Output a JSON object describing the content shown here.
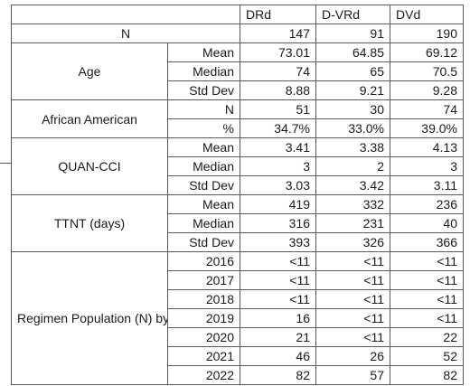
{
  "columns": [
    "DRd",
    "D-VRd",
    "DVd"
  ],
  "n_row": {
    "label": "N",
    "values": [
      "147",
      "91",
      "190"
    ]
  },
  "groups": [
    {
      "label": "Age",
      "rows": [
        {
          "stat": "Mean",
          "values": [
            "73.01",
            "64.85",
            "69.12"
          ]
        },
        {
          "stat": "Median",
          "values": [
            "74",
            "65",
            "70.5"
          ]
        },
        {
          "stat": "Std Dev",
          "values": [
            "8.88",
            "9.21",
            "9.28"
          ]
        }
      ]
    },
    {
      "label": "African American",
      "rows": [
        {
          "stat": "N",
          "values": [
            "51",
            "30",
            "74"
          ]
        },
        {
          "stat": "%",
          "values": [
            "34.7%",
            "33.0%",
            "39.0%"
          ]
        }
      ]
    },
    {
      "label": "QUAN-CCI",
      "rows": [
        {
          "stat": "Mean",
          "values": [
            "3.41",
            "3.38",
            "4.13"
          ]
        },
        {
          "stat": "Median",
          "values": [
            "3",
            "2",
            "3"
          ]
        },
        {
          "stat": "Std Dev",
          "values": [
            "3.03",
            "3.42",
            "3.11"
          ]
        }
      ]
    },
    {
      "label": "TTNT (days)",
      "rows": [
        {
          "stat": "Mean",
          "values": [
            "419",
            "332",
            "236"
          ]
        },
        {
          "stat": "Median",
          "values": [
            "316",
            "231",
            "40"
          ]
        },
        {
          "stat": "Std Dev",
          "values": [
            "393",
            "326",
            "366"
          ]
        }
      ]
    },
    {
      "label": "Regimen Population (N) by year",
      "rows": [
        {
          "stat": "2016",
          "values": [
            "<11",
            "<11",
            "<11"
          ]
        },
        {
          "stat": "2017",
          "values": [
            "<11",
            "<11",
            "<11"
          ]
        },
        {
          "stat": "2018",
          "values": [
            "<11",
            "<11",
            "<11"
          ]
        },
        {
          "stat": "2019",
          "values": [
            "16",
            "<11",
            "<11"
          ]
        },
        {
          "stat": "2020",
          "values": [
            "21",
            "<11",
            "22"
          ]
        },
        {
          "stat": "2021",
          "values": [
            "46",
            "26",
            "52"
          ]
        },
        {
          "stat": "2022",
          "values": [
            "82",
            "57",
            "82"
          ]
        }
      ]
    }
  ]
}
